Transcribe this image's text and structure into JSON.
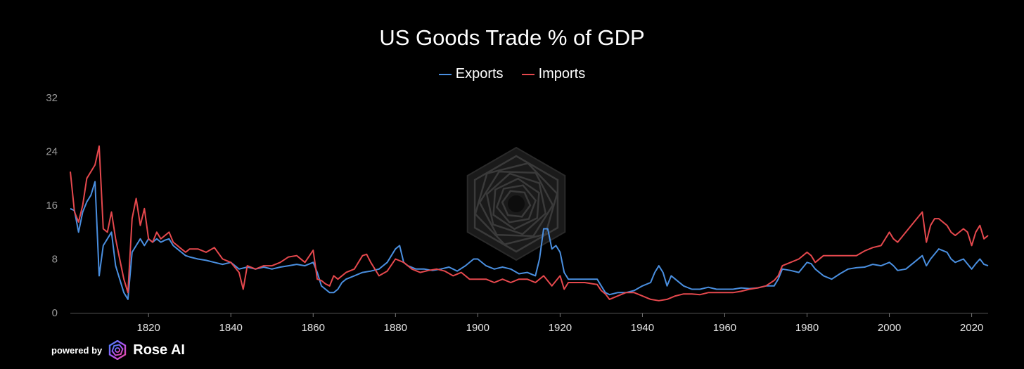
{
  "chart_data": {
    "type": "line",
    "title": "US Goods Trade % of GDP",
    "xlabel": "",
    "ylabel": "",
    "xlim": [
      1801,
      2024
    ],
    "ylim": [
      0,
      32
    ],
    "x_ticks": [
      1820,
      1840,
      1860,
      1880,
      1900,
      1920,
      1940,
      1960,
      1980,
      2000,
      2020
    ],
    "y_ticks": [
      0,
      8,
      16,
      24,
      32
    ],
    "grid": false,
    "legend_position": "top-center",
    "series": [
      {
        "name": "Exports",
        "color": "#4a8fe0",
        "points": [
          [
            1801,
            15.5
          ],
          [
            1802,
            15.2
          ],
          [
            1803,
            12
          ],
          [
            1804,
            15
          ],
          [
            1805,
            16.5
          ],
          [
            1806,
            17.5
          ],
          [
            1807,
            19.5
          ],
          [
            1808,
            5.5
          ],
          [
            1809,
            10
          ],
          [
            1810,
            11
          ],
          [
            1811,
            12
          ],
          [
            1812,
            7
          ],
          [
            1813,
            5
          ],
          [
            1814,
            3
          ],
          [
            1815,
            2
          ],
          [
            1816,
            9
          ],
          [
            1817,
            10
          ],
          [
            1818,
            11
          ],
          [
            1819,
            10
          ],
          [
            1820,
            11
          ],
          [
            1821,
            10.5
          ],
          [
            1822,
            11
          ],
          [
            1823,
            10.5
          ],
          [
            1824,
            10.8
          ],
          [
            1825,
            11
          ],
          [
            1826,
            10
          ],
          [
            1827,
            9.5
          ],
          [
            1828,
            9
          ],
          [
            1829,
            8.5
          ],
          [
            1830,
            8.3
          ],
          [
            1832,
            8
          ],
          [
            1834,
            7.8
          ],
          [
            1836,
            7.5
          ],
          [
            1838,
            7.2
          ],
          [
            1840,
            7.5
          ],
          [
            1842,
            6.5
          ],
          [
            1844,
            6.8
          ],
          [
            1846,
            6.5
          ],
          [
            1848,
            6.8
          ],
          [
            1850,
            6.5
          ],
          [
            1852,
            6.8
          ],
          [
            1854,
            7
          ],
          [
            1856,
            7.2
          ],
          [
            1858,
            7
          ],
          [
            1860,
            7.5
          ],
          [
            1861,
            6
          ],
          [
            1862,
            4
          ],
          [
            1863,
            3.5
          ],
          [
            1864,
            3
          ],
          [
            1865,
            3
          ],
          [
            1866,
            3.5
          ],
          [
            1867,
            4.5
          ],
          [
            1868,
            5
          ],
          [
            1870,
            5.5
          ],
          [
            1872,
            6
          ],
          [
            1874,
            6.2
          ],
          [
            1876,
            6.5
          ],
          [
            1878,
            7.5
          ],
          [
            1880,
            9.5
          ],
          [
            1881,
            10
          ],
          [
            1882,
            7.5
          ],
          [
            1883,
            7
          ],
          [
            1885,
            6.5
          ],
          [
            1887,
            6.5
          ],
          [
            1889,
            6.3
          ],
          [
            1891,
            6.5
          ],
          [
            1893,
            6.8
          ],
          [
            1895,
            6.2
          ],
          [
            1897,
            7
          ],
          [
            1899,
            8
          ],
          [
            1900,
            8
          ],
          [
            1902,
            7
          ],
          [
            1904,
            6.5
          ],
          [
            1906,
            6.8
          ],
          [
            1908,
            6.5
          ],
          [
            1910,
            5.8
          ],
          [
            1912,
            6
          ],
          [
            1914,
            5.5
          ],
          [
            1915,
            8
          ],
          [
            1916,
            12.5
          ],
          [
            1917,
            12.5
          ],
          [
            1918,
            9.5
          ],
          [
            1919,
            10
          ],
          [
            1920,
            9
          ],
          [
            1921,
            6
          ],
          [
            1922,
            5
          ],
          [
            1924,
            5
          ],
          [
            1926,
            5
          ],
          [
            1928,
            5
          ],
          [
            1929,
            5
          ],
          [
            1930,
            4
          ],
          [
            1931,
            3
          ],
          [
            1932,
            2.7
          ],
          [
            1934,
            3
          ],
          [
            1936,
            3
          ],
          [
            1938,
            3.3
          ],
          [
            1940,
            4
          ],
          [
            1942,
            4.5
          ],
          [
            1943,
            6
          ],
          [
            1944,
            7
          ],
          [
            1945,
            6
          ],
          [
            1946,
            4
          ],
          [
            1947,
            5.5
          ],
          [
            1948,
            5
          ],
          [
            1950,
            4
          ],
          [
            1952,
            3.5
          ],
          [
            1954,
            3.5
          ],
          [
            1956,
            3.8
          ],
          [
            1958,
            3.5
          ],
          [
            1960,
            3.5
          ],
          [
            1962,
            3.5
          ],
          [
            1964,
            3.7
          ],
          [
            1966,
            3.6
          ],
          [
            1968,
            3.7
          ],
          [
            1970,
            4
          ],
          [
            1972,
            4
          ],
          [
            1973,
            5
          ],
          [
            1974,
            6.5
          ],
          [
            1976,
            6.3
          ],
          [
            1978,
            6
          ],
          [
            1980,
            7.5
          ],
          [
            1981,
            7.3
          ],
          [
            1982,
            6.5
          ],
          [
            1984,
            5.5
          ],
          [
            1986,
            5
          ],
          [
            1988,
            5.8
          ],
          [
            1990,
            6.5
          ],
          [
            1992,
            6.7
          ],
          [
            1994,
            6.8
          ],
          [
            1996,
            7.2
          ],
          [
            1998,
            7
          ],
          [
            2000,
            7.5
          ],
          [
            2001,
            7
          ],
          [
            2002,
            6.3
          ],
          [
            2004,
            6.5
          ],
          [
            2006,
            7.5
          ],
          [
            2008,
            8.5
          ],
          [
            2009,
            7
          ],
          [
            2010,
            8
          ],
          [
            2012,
            9.5
          ],
          [
            2014,
            9
          ],
          [
            2015,
            8
          ],
          [
            2016,
            7.5
          ],
          [
            2018,
            8
          ],
          [
            2020,
            6.5
          ],
          [
            2021,
            7.3
          ],
          [
            2022,
            8
          ],
          [
            2023,
            7.2
          ],
          [
            2024,
            7
          ]
        ]
      },
      {
        "name": "Imports",
        "color": "#e5484d",
        "points": [
          [
            1801,
            21
          ],
          [
            1802,
            15
          ],
          [
            1803,
            13.5
          ],
          [
            1804,
            16
          ],
          [
            1805,
            20
          ],
          [
            1806,
            21
          ],
          [
            1807,
            22
          ],
          [
            1808,
            24.8
          ],
          [
            1809,
            12.5
          ],
          [
            1810,
            12
          ],
          [
            1811,
            15
          ],
          [
            1812,
            11
          ],
          [
            1813,
            8
          ],
          [
            1814,
            5
          ],
          [
            1815,
            3
          ],
          [
            1816,
            14
          ],
          [
            1817,
            17
          ],
          [
            1818,
            13
          ],
          [
            1819,
            15.5
          ],
          [
            1820,
            11
          ],
          [
            1821,
            10.5
          ],
          [
            1822,
            12
          ],
          [
            1823,
            11
          ],
          [
            1824,
            11.5
          ],
          [
            1825,
            12
          ],
          [
            1826,
            10.5
          ],
          [
            1827,
            10
          ],
          [
            1828,
            9.5
          ],
          [
            1829,
            9
          ],
          [
            1830,
            9.5
          ],
          [
            1832,
            9.5
          ],
          [
            1834,
            9
          ],
          [
            1836,
            9.7
          ],
          [
            1838,
            8
          ],
          [
            1840,
            7.5
          ],
          [
            1842,
            6
          ],
          [
            1843,
            3.5
          ],
          [
            1844,
            7
          ],
          [
            1846,
            6.5
          ],
          [
            1848,
            7
          ],
          [
            1850,
            7
          ],
          [
            1852,
            7.5
          ],
          [
            1854,
            8.3
          ],
          [
            1856,
            8.5
          ],
          [
            1858,
            7.5
          ],
          [
            1860,
            9.3
          ],
          [
            1861,
            5
          ],
          [
            1862,
            4.8
          ],
          [
            1863,
            4.3
          ],
          [
            1864,
            4
          ],
          [
            1865,
            5.5
          ],
          [
            1866,
            5
          ],
          [
            1868,
            6
          ],
          [
            1870,
            6.5
          ],
          [
            1872,
            8.5
          ],
          [
            1873,
            8.7
          ],
          [
            1874,
            7.5
          ],
          [
            1876,
            5.5
          ],
          [
            1878,
            6.2
          ],
          [
            1880,
            8
          ],
          [
            1882,
            7.5
          ],
          [
            1884,
            6.5
          ],
          [
            1886,
            6
          ],
          [
            1888,
            6.3
          ],
          [
            1890,
            6.5
          ],
          [
            1892,
            6.2
          ],
          [
            1894,
            5.5
          ],
          [
            1896,
            6
          ],
          [
            1898,
            5
          ],
          [
            1900,
            5
          ],
          [
            1902,
            5
          ],
          [
            1904,
            4.5
          ],
          [
            1906,
            5
          ],
          [
            1908,
            4.5
          ],
          [
            1910,
            5
          ],
          [
            1912,
            5
          ],
          [
            1914,
            4.5
          ],
          [
            1916,
            5.5
          ],
          [
            1918,
            4
          ],
          [
            1920,
            5.5
          ],
          [
            1921,
            3.5
          ],
          [
            1922,
            4.5
          ],
          [
            1924,
            4.5
          ],
          [
            1926,
            4.5
          ],
          [
            1928,
            4.3
          ],
          [
            1929,
            4.2
          ],
          [
            1930,
            3.3
          ],
          [
            1931,
            2.8
          ],
          [
            1932,
            2
          ],
          [
            1934,
            2.5
          ],
          [
            1936,
            3
          ],
          [
            1938,
            3
          ],
          [
            1940,
            2.5
          ],
          [
            1942,
            2
          ],
          [
            1944,
            1.8
          ],
          [
            1946,
            2
          ],
          [
            1948,
            2.5
          ],
          [
            1950,
            2.8
          ],
          [
            1952,
            2.8
          ],
          [
            1954,
            2.7
          ],
          [
            1956,
            3
          ],
          [
            1958,
            3
          ],
          [
            1960,
            3
          ],
          [
            1962,
            3
          ],
          [
            1964,
            3.2
          ],
          [
            1966,
            3.5
          ],
          [
            1968,
            3.7
          ],
          [
            1970,
            4
          ],
          [
            1972,
            4.8
          ],
          [
            1973,
            5.5
          ],
          [
            1974,
            7
          ],
          [
            1976,
            7.5
          ],
          [
            1978,
            8
          ],
          [
            1980,
            9
          ],
          [
            1981,
            8.5
          ],
          [
            1982,
            7.5
          ],
          [
            1984,
            8.5
          ],
          [
            1986,
            8.5
          ],
          [
            1988,
            8.5
          ],
          [
            1990,
            8.5
          ],
          [
            1992,
            8.5
          ],
          [
            1994,
            9.2
          ],
          [
            1996,
            9.7
          ],
          [
            1998,
            10
          ],
          [
            2000,
            12
          ],
          [
            2001,
            11
          ],
          [
            2002,
            10.5
          ],
          [
            2004,
            12
          ],
          [
            2006,
            13.5
          ],
          [
            2008,
            15
          ],
          [
            2009,
            10.5
          ],
          [
            2010,
            13
          ],
          [
            2011,
            14
          ],
          [
            2012,
            14
          ],
          [
            2014,
            13
          ],
          [
            2015,
            12
          ],
          [
            2016,
            11.5
          ],
          [
            2018,
            12.5
          ],
          [
            2019,
            12
          ],
          [
            2020,
            10
          ],
          [
            2021,
            12
          ],
          [
            2022,
            13
          ],
          [
            2023,
            11
          ],
          [
            2024,
            11.5
          ]
        ]
      }
    ]
  },
  "footer": {
    "powered_by": "powered by",
    "brand": "Rose AI",
    "brand_colors": [
      "#a855f7",
      "#3b82f6",
      "#ec4899"
    ]
  },
  "watermark": {
    "icon": "rose-ai-hexagon-logo-watermark"
  }
}
